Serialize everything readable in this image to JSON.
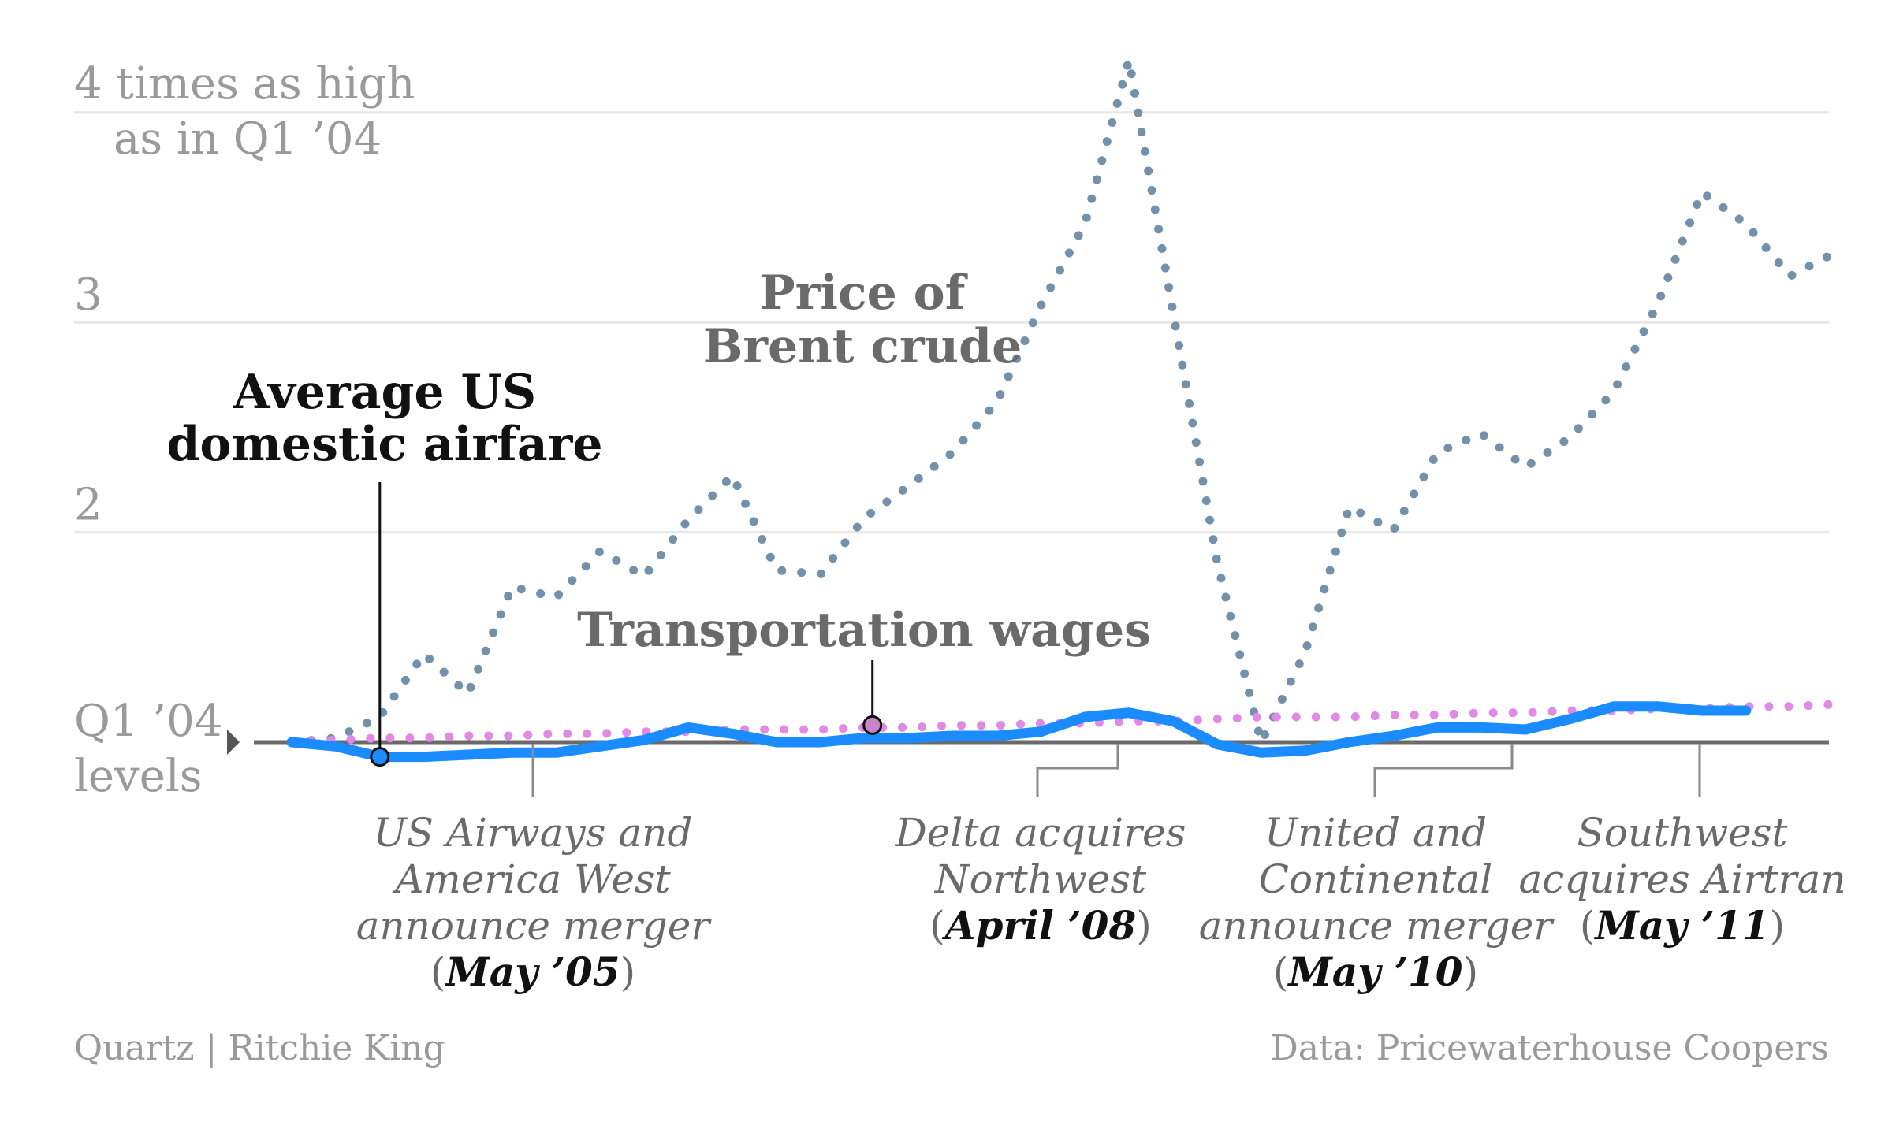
{
  "chart_data": {
    "type": "line",
    "title": "",
    "ylabel": "",
    "xlabel": "",
    "ylim": [
      1,
      4.2
    ],
    "y_ticks": [
      {
        "value": 1,
        "label_lines": [
          "Q1 ’04",
          "levels"
        ]
      },
      {
        "value": 2,
        "label_lines": [
          "2"
        ]
      },
      {
        "value": 3,
        "label_lines": [
          "3"
        ]
      },
      {
        "value": 4,
        "label_lines": [
          "4 times as high",
          "as in Q1 ’04"
        ]
      }
    ],
    "grid": true,
    "x_start": "Q1 2004",
    "x_end": "Q4 2012",
    "x_interval": "quarter",
    "series": [
      {
        "name": "Price of Brent crude",
        "label_lines": [
          "Price of",
          "Brent crude"
        ],
        "style": "dotted",
        "color": "#7391ab",
        "values": [
          1.0,
          1.02,
          1.12,
          1.42,
          1.23,
          1.74,
          1.69,
          1.91,
          1.79,
          2.06,
          2.27,
          1.82,
          1.8,
          2.07,
          2.22,
          2.38,
          2.62,
          3.08,
          3.47,
          4.25,
          3.05,
          1.86,
          1.0,
          1.43,
          2.12,
          2.01,
          2.38,
          2.47,
          2.31,
          2.45,
          2.67,
          3.09,
          3.62,
          3.47,
          3.22,
          3.33
        ]
      },
      {
        "name": "Transportation wages",
        "label_lines": [
          "Transportation wages"
        ],
        "style": "dotted",
        "color": "#e08ae6",
        "values": [
          1.0,
          1.01,
          1.02,
          1.02,
          1.03,
          1.03,
          1.04,
          1.04,
          1.05,
          1.05,
          1.06,
          1.06,
          1.06,
          1.07,
          1.07,
          1.08,
          1.08,
          1.09,
          1.09,
          1.1,
          1.1,
          1.11,
          1.12,
          1.12,
          1.12,
          1.13,
          1.13,
          1.14,
          1.14,
          1.15,
          1.15,
          1.16,
          1.16,
          1.17,
          1.17,
          1.18
        ]
      },
      {
        "name": "Average US domestic airfare",
        "label_lines": [
          "Average US",
          "domestic airfare"
        ],
        "style": "solid",
        "color": "#1a8cff",
        "values": [
          1.0,
          0.98,
          0.93,
          0.93,
          0.94,
          0.95,
          0.95,
          0.98,
          1.01,
          1.07,
          1.04,
          1.0,
          1.0,
          1.02,
          1.02,
          1.03,
          1.03,
          1.05,
          1.12,
          1.14,
          1.1,
          0.99,
          0.95,
          0.96,
          1.0,
          1.03,
          1.07,
          1.07,
          1.06,
          1.11,
          1.17,
          1.17,
          1.15,
          1.15
        ]
      }
    ],
    "annotations": [
      {
        "lines": [
          "US Airways and",
          "America West",
          "announce merger"
        ],
        "date": "May ’05"
      },
      {
        "lines": [
          "Delta acquires",
          "Northwest"
        ],
        "date": "April ’08"
      },
      {
        "lines": [
          "United and",
          "Continental",
          "announce merger"
        ],
        "date": "May ’10"
      },
      {
        "lines": [
          "Southwest",
          "acquires Airtran"
        ],
        "date": "May ’11"
      }
    ]
  },
  "footer": {
    "left": "Quartz | Ritchie King",
    "right": "Data: Pricewaterhouse Coopers"
  },
  "colors": {
    "grid": "#e6e6e6",
    "baseline": "#6a6a6a",
    "brent": "#7391ab",
    "wages": "#e08ae6",
    "airfare": "#1a8cff",
    "muted_text": "#9a9a9a"
  }
}
